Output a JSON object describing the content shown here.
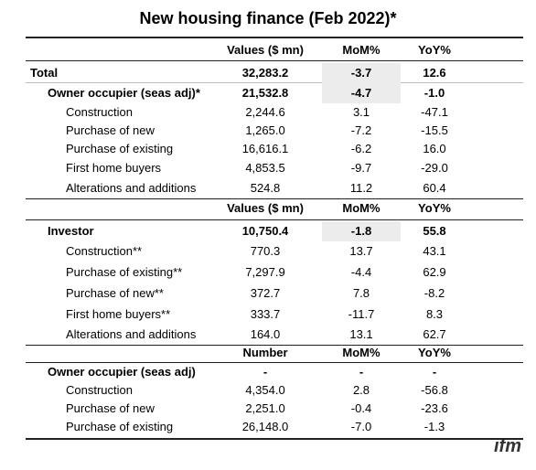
{
  "title": "New housing finance (Feb 2022)*",
  "table": {
    "rows": [
      [
        "Values ($ mn)",
        "MoM%",
        "YoY%"
      ],
      [
        "Total",
        "32,283.2",
        "-3.7",
        "12.6"
      ],
      [
        "Owner occupier (seas adj)*",
        "21,532.8",
        "-4.7",
        "-1.0"
      ],
      [
        "Construction",
        "2,244.6",
        "3.1",
        "-47.1"
      ],
      [
        "Purchase of new",
        "1,265.0",
        "-7.2",
        "-15.5"
      ],
      [
        "Purchase of existing",
        "16,616.1",
        "-6.2",
        "16.0"
      ],
      [
        "First home buyers",
        "4,853.5",
        "-9.7",
        "-29.0"
      ],
      [
        "Alterations and additions",
        "524.8",
        "11.2",
        "60.4"
      ],
      [
        "Values ($ mn)",
        "MoM%",
        "YoY%"
      ],
      [
        "Investor",
        "10,750.4",
        "-1.8",
        "55.8"
      ],
      [
        "Construction**",
        "770.3",
        "13.7",
        "43.1"
      ],
      [
        "Purchase of existing**",
        "7,297.9",
        "-4.4",
        "62.9"
      ],
      [
        "Purchase of new**",
        "372.7",
        "7.8",
        "-8.2"
      ],
      [
        "First home buyers**",
        "333.7",
        "-11.7",
        "8.3"
      ],
      [
        "Alterations and additions",
        "164.0",
        "13.1",
        "62.7"
      ],
      [
        "Number",
        "MoM%",
        "YoY%"
      ],
      [
        "Owner occupier (seas adj)",
        "-",
        "-",
        "-"
      ],
      [
        "Construction",
        "4,354.0",
        "2.8",
        "-56.8"
      ],
      [
        "Purchase of new",
        "2,251.0",
        "-0.4",
        "-23.6"
      ],
      [
        "Purchase of existing",
        "26,148.0",
        "-7.0",
        "-1.3"
      ]
    ]
  },
  "logo": "ifm"
}
